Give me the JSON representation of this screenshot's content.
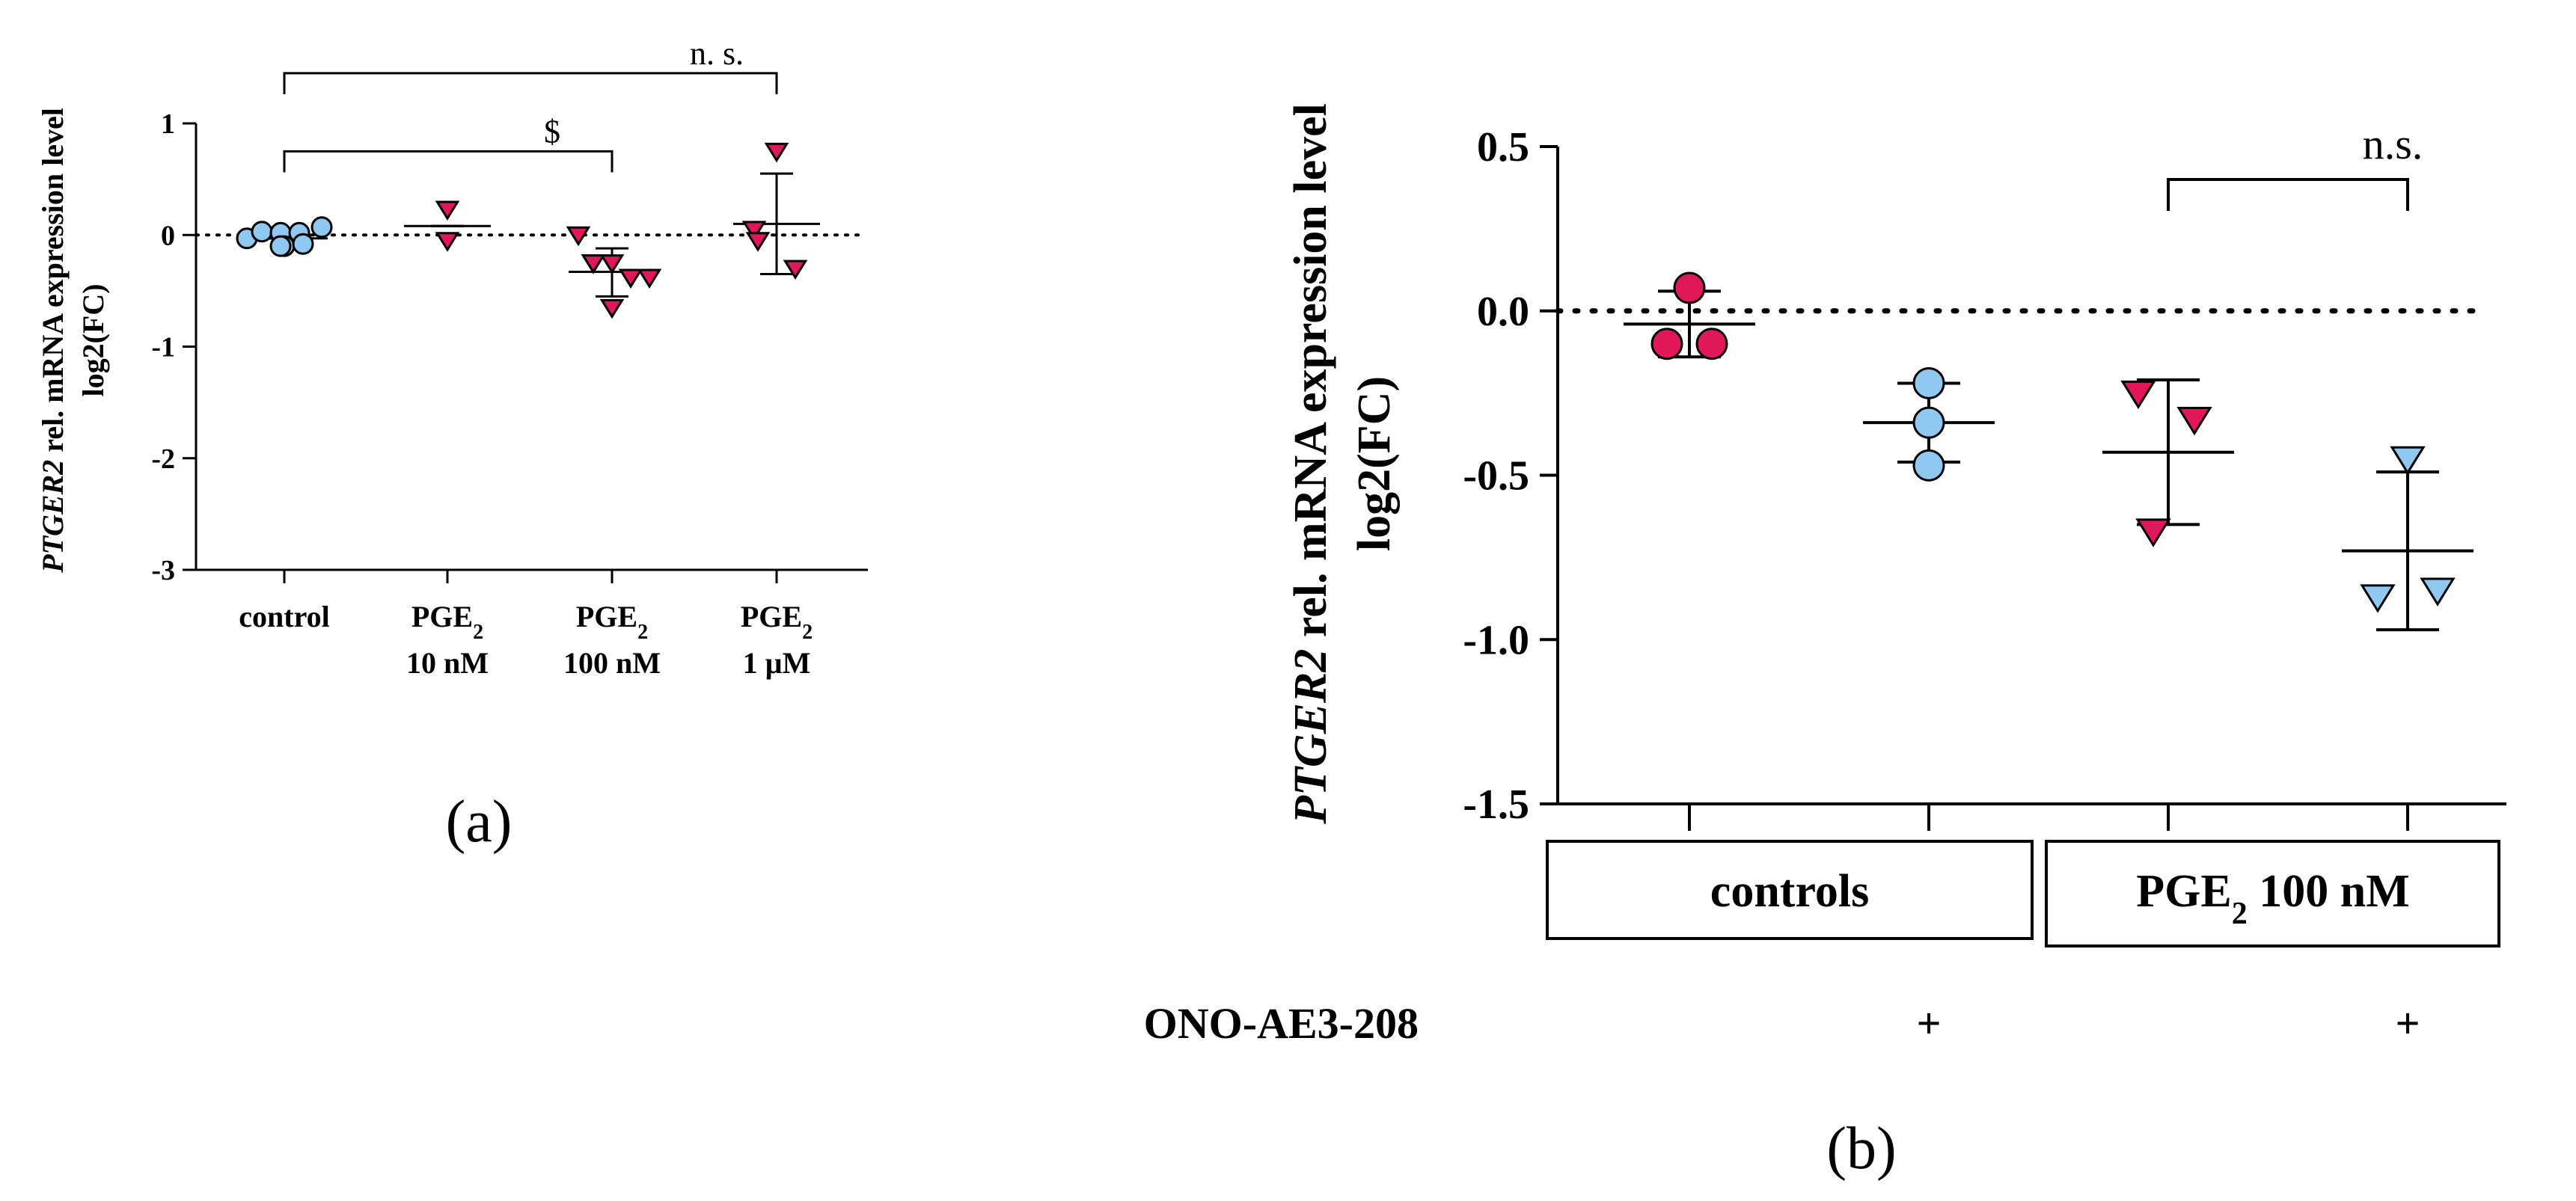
{
  "chart_data": [
    {
      "panel": "(a)",
      "type": "scatter",
      "ylabel": "PTGER2 rel. mRNA expression level log2(FC)",
      "ylabel_italic": "PTGER2",
      "ylabel_rest": " rel. mRNA expression level",
      "ylabel_line2": "log2(FC)",
      "ylim": [
        -3,
        1
      ],
      "yticks": [
        1,
        0,
        -1,
        -2,
        -3
      ],
      "reference_line": 0,
      "categories": [
        {
          "line1": "control",
          "line2": ""
        },
        {
          "line1": "PGE",
          "sub": "2",
          "line2": "10 nM"
        },
        {
          "line1": "PGE",
          "sub": "2",
          "line2": "100 nM"
        },
        {
          "line1": "PGE",
          "sub": "2",
          "line2": "1 µM"
        }
      ],
      "groups": [
        {
          "marker": "circle",
          "color": "#8fc8f0",
          "mean": -0.03,
          "sd_low": -0.03,
          "sd_high": -0.03,
          "points": [
            -0.03,
            0.03,
            0.02,
            0.02,
            -0.1,
            -0.08,
            0.07,
            -0.1
          ]
        },
        {
          "marker": "triangle-down",
          "color": "#e0185a",
          "mean": 0.08,
          "sd_low": 0.08,
          "sd_high": 0.08,
          "points": [
            0.23,
            -0.05
          ]
        },
        {
          "marker": "triangle-down",
          "color": "#e0185a",
          "mean": -0.33,
          "sd_low": -0.55,
          "sd_high": -0.12,
          "points": [
            0.0,
            -0.25,
            -0.25,
            -0.38,
            -0.38,
            -0.25,
            -0.65
          ]
        },
        {
          "marker": "triangle-down",
          "color": "#e0185a",
          "mean": 0.1,
          "sd_low": -0.35,
          "sd_high": 0.55,
          "points": [
            0.75,
            0.05,
            -0.05,
            -0.3
          ]
        }
      ],
      "brackets": [
        {
          "from": 0,
          "to": 3,
          "y": 1.45,
          "label": "n. s."
        },
        {
          "from": 0,
          "to": 2,
          "y": 0.75,
          "label": "$"
        }
      ]
    },
    {
      "panel": "(b)",
      "type": "scatter",
      "ylabel": "PTGER2 rel. mRNA expression level log2(FC)",
      "ylabel_italic": "PTGER2",
      "ylabel_rest": " rel. mRNA expression level",
      "ylabel_line2": "log2(FC)",
      "ylim": [
        -1.5,
        0.5
      ],
      "yticks": [
        "0.5",
        "0.0",
        "-0.5",
        "-1.0",
        "-1.5"
      ],
      "reference_line": 0,
      "groups": [
        {
          "marker": "circle",
          "color": "#e0185a",
          "mean": -0.04,
          "sd_low": -0.14,
          "sd_high": 0.06,
          "points": [
            0.07,
            -0.1,
            -0.1
          ]
        },
        {
          "marker": "circle",
          "color": "#8fc8f0",
          "mean": -0.34,
          "sd_low": -0.46,
          "sd_high": -0.22,
          "points": [
            -0.22,
            -0.34,
            -0.47
          ]
        },
        {
          "marker": "triangle-down",
          "color": "#e0185a",
          "mean": -0.43,
          "sd_low": -0.65,
          "sd_high": -0.21,
          "points": [
            -0.25,
            -0.33,
            -0.67
          ]
        },
        {
          "marker": "triangle-down",
          "color": "#8fc8f0",
          "mean": -0.73,
          "sd_low": -0.97,
          "sd_high": -0.49,
          "points": [
            -0.45,
            -0.87,
            -0.85
          ]
        }
      ],
      "group_boxes": [
        {
          "label": "controls"
        },
        {
          "label_main": "PGE",
          "label_sub": "2",
          "label_rest": " 100 nM"
        }
      ],
      "treatment": {
        "label": "ONO-AE3-208",
        "marks": [
          "",
          "+",
          "",
          "+"
        ]
      },
      "brackets": [
        {
          "from": 2,
          "to": 3,
          "y": 0.4,
          "label": "n.s."
        }
      ]
    }
  ]
}
